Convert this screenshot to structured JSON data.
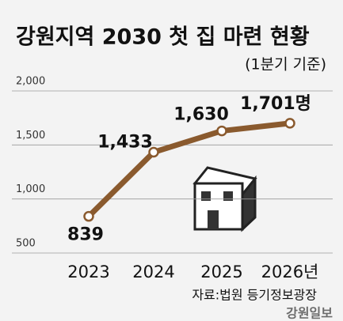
{
  "chart_data": {
    "type": "line",
    "title": "강원지역 2030 첫 집 마련 현황",
    "subtitle": "(1분기 기준)",
    "categories": [
      "2023",
      "2024",
      "2025",
      "2026년"
    ],
    "series": [
      {
        "name": "첫 집 마련",
        "color": "#8a5a2e",
        "values": [
          839,
          1433,
          1630,
          1701
        ],
        "value_labels": [
          "839",
          "1,433",
          "1,630",
          "1,701명"
        ]
      }
    ],
    "ylim": [
      500,
      2000
    ],
    "yticks": [
      500,
      {
        "value": 1000,
        "label": "1,000"
      },
      {
        "value": 1500,
        "label": "1,500"
      },
      {
        "value": 2000,
        "label": "2,000"
      }
    ],
    "grid": true,
    "source": "자료:법원 등기정보광장",
    "watermark": "강원일보"
  }
}
